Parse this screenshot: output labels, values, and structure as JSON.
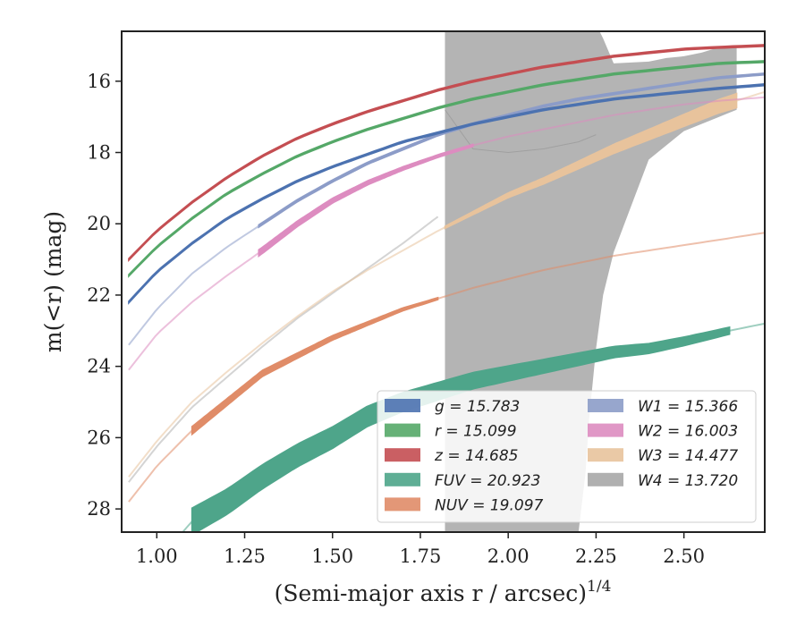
{
  "chart_data": {
    "type": "line",
    "xlabel": "(Semi-major axis r / arcsec)",
    "xlabel_exponent": "1/4",
    "ylabel": "m(<r) (mag)",
    "xlim": [
      0.9,
      2.73
    ],
    "ylim": [
      28.65,
      14.6
    ],
    "y_inverted": true,
    "grid": false,
    "legend_position": "lower-right",
    "x_ticks": [
      1.0,
      1.25,
      1.5,
      1.75,
      2.0,
      2.25,
      2.5
    ],
    "x_tick_labels": [
      "1.00",
      "1.25",
      "1.50",
      "1.75",
      "2.00",
      "2.25",
      "2.50"
    ],
    "y_ticks": [
      16,
      18,
      20,
      22,
      24,
      26,
      28
    ],
    "y_tick_labels": [
      "16",
      "18",
      "20",
      "22",
      "24",
      "26",
      "28"
    ],
    "series": [
      {
        "name": "g",
        "total_label": "g = 15.783",
        "color": "#4c72b0",
        "x": [
          0.92,
          1.0,
          1.1,
          1.2,
          1.3,
          1.4,
          1.5,
          1.6,
          1.7,
          1.8,
          1.9,
          2.0,
          2.1,
          2.2,
          2.3,
          2.4,
          2.5,
          2.6,
          2.73
        ],
        "y": [
          22.2,
          21.35,
          20.55,
          19.85,
          19.3,
          18.8,
          18.4,
          18.05,
          17.7,
          17.45,
          17.2,
          17.0,
          16.8,
          16.65,
          16.5,
          16.4,
          16.3,
          16.2,
          16.1
        ],
        "solid_range": [
          0.92,
          2.73
        ],
        "width": [
          0.05,
          0.05
        ]
      },
      {
        "name": "r",
        "total_label": "r = 15.099",
        "color": "#55a868",
        "x": [
          0.92,
          1.0,
          1.1,
          1.2,
          1.3,
          1.4,
          1.5,
          1.6,
          1.7,
          1.8,
          1.9,
          2.0,
          2.1,
          2.2,
          2.3,
          2.4,
          2.5,
          2.6,
          2.73
        ],
        "y": [
          21.45,
          20.65,
          19.85,
          19.15,
          18.6,
          18.1,
          17.7,
          17.35,
          17.05,
          16.75,
          16.5,
          16.3,
          16.1,
          15.95,
          15.8,
          15.7,
          15.6,
          15.5,
          15.45
        ],
        "solid_range": [
          0.92,
          2.73
        ],
        "width": [
          0.05,
          0.05
        ]
      },
      {
        "name": "z",
        "total_label": "z = 14.685",
        "color": "#c44e52",
        "x": [
          0.92,
          1.0,
          1.1,
          1.2,
          1.3,
          1.4,
          1.5,
          1.6,
          1.7,
          1.8,
          1.9,
          2.0,
          2.1,
          2.2,
          2.3,
          2.4,
          2.5,
          2.6,
          2.73
        ],
        "y": [
          21.0,
          20.2,
          19.4,
          18.7,
          18.1,
          17.6,
          17.2,
          16.85,
          16.55,
          16.25,
          16.0,
          15.8,
          15.6,
          15.45,
          15.3,
          15.2,
          15.1,
          15.05,
          15.0
        ],
        "solid_range": [
          0.92,
          2.73
        ],
        "width": [
          0.05,
          0.05
        ]
      },
      {
        "name": "FUV",
        "total_label": "FUV = 20.923",
        "color": "#4ea58a",
        "x": [
          0.92,
          1.0,
          1.1,
          1.2,
          1.3,
          1.4,
          1.5,
          1.6,
          1.7,
          1.8,
          1.9,
          2.0,
          2.1,
          2.2,
          2.3,
          2.4,
          2.5,
          2.63,
          2.73
        ],
        "y": [
          30.5,
          29.5,
          28.35,
          27.8,
          27.1,
          26.5,
          26.0,
          25.4,
          25.0,
          24.7,
          24.4,
          24.2,
          24.0,
          23.8,
          23.6,
          23.5,
          23.3,
          23.0,
          22.8
        ],
        "solid_range": [
          1.1,
          2.63
        ],
        "width": [
          0.75,
          0.2
        ]
      },
      {
        "name": "NUV",
        "total_label": "NUV = 19.097",
        "color": "#e08c68",
        "x": [
          0.92,
          1.0,
          1.1,
          1.2,
          1.3,
          1.4,
          1.5,
          1.6,
          1.7,
          1.8,
          1.9,
          2.0,
          2.1,
          2.2,
          2.3,
          2.4,
          2.5,
          2.6,
          2.73
        ],
        "y": [
          27.8,
          26.8,
          25.8,
          25.0,
          24.2,
          23.7,
          23.2,
          22.8,
          22.4,
          22.1,
          21.8,
          21.55,
          21.3,
          21.1,
          20.9,
          20.75,
          20.6,
          20.45,
          20.25
        ],
        "solid_range": [
          1.1,
          1.8
        ],
        "width": [
          0.22,
          0.06
        ]
      },
      {
        "name": "W1",
        "total_label": "W1 = 15.366",
        "color": "#8c9cc8",
        "x": [
          0.92,
          1.0,
          1.1,
          1.2,
          1.3,
          1.4,
          1.5,
          1.6,
          1.7,
          1.8,
          1.9,
          2.0,
          2.1,
          2.2,
          2.3,
          2.4,
          2.5,
          2.6,
          2.73
        ],
        "y": [
          23.4,
          22.4,
          21.4,
          20.65,
          20.0,
          19.35,
          18.8,
          18.3,
          17.9,
          17.5,
          17.2,
          16.95,
          16.7,
          16.5,
          16.35,
          16.2,
          16.05,
          15.9,
          15.8
        ],
        "solid_range": [
          1.29,
          2.73
        ],
        "width": [
          0.07,
          0.05
        ]
      },
      {
        "name": "W2",
        "total_label": "W2 = 16.003",
        "color": "#dd8cc0",
        "x": [
          0.92,
          1.0,
          1.1,
          1.2,
          1.3,
          1.4,
          1.5,
          1.6,
          1.7,
          1.8,
          1.9,
          2.0,
          2.1,
          2.2,
          2.3,
          2.4,
          2.5,
          2.6,
          2.73
        ],
        "y": [
          24.1,
          23.1,
          22.2,
          21.45,
          20.75,
          20.0,
          19.35,
          18.85,
          18.45,
          18.1,
          17.8,
          17.55,
          17.35,
          17.15,
          16.95,
          16.8,
          16.65,
          16.55,
          16.45
        ],
        "solid_range": [
          1.29,
          1.9
        ],
        "width": [
          0.18,
          0.06
        ]
      },
      {
        "name": "W3",
        "total_label": "W3 = 14.477",
        "color": "#e8c39c",
        "x": [
          0.92,
          1.0,
          1.1,
          1.2,
          1.3,
          1.4,
          1.5,
          1.6,
          1.7,
          1.8,
          1.9,
          2.0,
          2.1,
          2.2,
          2.3,
          2.4,
          2.5,
          2.6,
          2.73
        ],
        "y": [
          27.1,
          26.1,
          25.0,
          24.15,
          23.35,
          22.6,
          21.9,
          21.3,
          20.75,
          20.2,
          19.7,
          19.2,
          18.8,
          18.35,
          17.9,
          17.5,
          17.1,
          16.7,
          16.3
        ],
        "solid_range": [
          1.82,
          2.65
        ],
        "width": [
          0.06,
          0.4
        ]
      },
      {
        "name": "W4",
        "total_label": "W4 = 13.720",
        "color": "#b0b0b0",
        "x": [
          0.92,
          1.0,
          1.1,
          1.2,
          1.3,
          1.4,
          1.5,
          1.6,
          1.7,
          1.8
        ],
        "y": [
          27.25,
          26.25,
          25.15,
          24.3,
          23.45,
          22.65,
          21.95,
          21.25,
          20.55,
          19.8
        ],
        "solid_range": [
          0.92,
          0.92
        ],
        "width": [
          0.05,
          0.05
        ]
      }
    ],
    "w4_band": {
      "upper": {
        "x": [
          1.82,
          2.0,
          2.1,
          2.2,
          2.26,
          2.27,
          2.3,
          2.4,
          2.45,
          2.5,
          2.55,
          2.6,
          2.65
        ],
        "y": [
          14.6,
          14.6,
          14.6,
          14.6,
          14.6,
          14.8,
          15.5,
          15.45,
          15.35,
          15.3,
          15.2,
          15.05,
          15.0
        ]
      },
      "lower": {
        "x": [
          1.82,
          2.2,
          2.22,
          2.23,
          2.25,
          2.27,
          2.3,
          2.35,
          2.4,
          2.5,
          2.6,
          2.65
        ],
        "y": [
          28.65,
          28.65,
          27.0,
          25.5,
          23.5,
          22.0,
          20.8,
          19.5,
          18.2,
          17.4,
          17.0,
          16.8
        ]
      },
      "inner_lobe": {
        "x": [
          1.82,
          1.9,
          2.0,
          2.1,
          2.2,
          2.25
        ],
        "y": [
          16.8,
          17.9,
          18.0,
          17.9,
          17.7,
          17.5
        ]
      }
    },
    "legend_columns": [
      [
        "g",
        "r",
        "z",
        "FUV",
        "NUV"
      ],
      [
        "W1",
        "W2",
        "W3",
        "W4"
      ]
    ],
    "legend_labels": {
      "g": "g = 15.783",
      "r": "r = 15.099",
      "z": "z = 14.685",
      "FUV": "FUV = 20.923",
      "NUV": "NUV = 19.097",
      "W1": "W1 = 15.366",
      "W2": "W2 = 16.003",
      "W3": "W3 = 14.477",
      "W4": "W4 = 13.720"
    }
  }
}
